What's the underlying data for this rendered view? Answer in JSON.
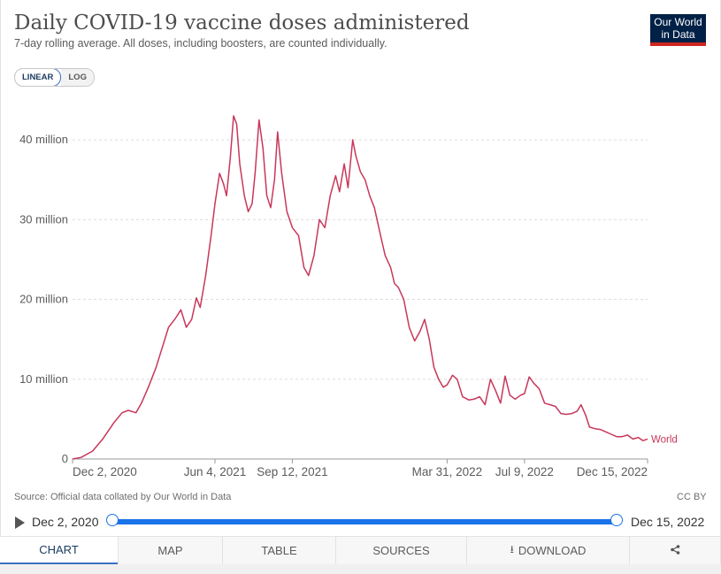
{
  "header": {
    "title": "Daily COVID-19 vaccine doses administered",
    "subtitle": "7-day rolling average. All doses, including boosters, are counted individually.",
    "logo_line1": "Our World",
    "logo_line2": "in Data"
  },
  "scale_toggle": {
    "linear": "LINEAR",
    "log": "LOG",
    "selected": "LINEAR"
  },
  "chart_data": {
    "type": "line",
    "title": "Daily COVID-19 vaccine doses administered",
    "subtitle": "7-day rolling average. All doses, including boosters, are counted individually.",
    "x_ticks": [
      "Dec 2, 2020",
      "Jun 4, 2021",
      "Sep 12, 2021",
      "Mar 31, 2022",
      "Jul 9, 2022",
      "Dec 15, 2022"
    ],
    "x_range": [
      "2020-12-02",
      "2022-12-15"
    ],
    "y_ticks": [
      "0",
      "10 million",
      "20 million",
      "30 million",
      "40 million"
    ],
    "y_tick_values": [
      0,
      10000000,
      20000000,
      30000000,
      40000000
    ],
    "ylim": [
      0,
      45000000
    ],
    "grid": true,
    "series": [
      {
        "name": "World",
        "color": "#c8375a",
        "points": [
          [
            "2020-12-02",
            0
          ],
          [
            "2020-12-13",
            200000
          ],
          [
            "2020-12-28",
            1000000
          ],
          [
            "2021-01-10",
            2500000
          ],
          [
            "2021-01-24",
            4500000
          ],
          [
            "2021-02-04",
            5800000
          ],
          [
            "2021-02-12",
            6100000
          ],
          [
            "2021-02-22",
            5800000
          ],
          [
            "2021-03-01",
            7000000
          ],
          [
            "2021-03-10",
            9000000
          ],
          [
            "2021-03-20",
            11500000
          ],
          [
            "2021-03-28",
            14000000
          ],
          [
            "2021-04-05",
            16500000
          ],
          [
            "2021-04-13",
            17500000
          ],
          [
            "2021-04-21",
            18700000
          ],
          [
            "2021-04-28",
            16500000
          ],
          [
            "2021-05-05",
            17500000
          ],
          [
            "2021-05-11",
            20200000
          ],
          [
            "2021-05-16",
            19000000
          ],
          [
            "2021-05-23",
            23000000
          ],
          [
            "2021-05-30",
            28000000
          ],
          [
            "2021-06-04",
            32000000
          ],
          [
            "2021-06-10",
            35800000
          ],
          [
            "2021-06-15",
            34500000
          ],
          [
            "2021-06-19",
            33000000
          ],
          [
            "2021-06-24",
            38000000
          ],
          [
            "2021-06-28",
            43000000
          ],
          [
            "2021-07-02",
            42000000
          ],
          [
            "2021-07-06",
            37000000
          ],
          [
            "2021-07-12",
            33000000
          ],
          [
            "2021-07-17",
            31000000
          ],
          [
            "2021-07-22",
            32000000
          ],
          [
            "2021-07-26",
            36000000
          ],
          [
            "2021-07-31",
            42500000
          ],
          [
            "2021-08-05",
            39000000
          ],
          [
            "2021-08-10",
            33000000
          ],
          [
            "2021-08-15",
            31500000
          ],
          [
            "2021-08-20",
            35000000
          ],
          [
            "2021-08-24",
            41000000
          ],
          [
            "2021-08-29",
            36000000
          ],
          [
            "2021-09-05",
            31000000
          ],
          [
            "2021-09-12",
            29000000
          ],
          [
            "2021-09-20",
            28000000
          ],
          [
            "2021-09-27",
            24000000
          ],
          [
            "2021-10-03",
            23000000
          ],
          [
            "2021-10-10",
            25500000
          ],
          [
            "2021-10-17",
            30000000
          ],
          [
            "2021-10-24",
            29000000
          ],
          [
            "2021-10-31",
            33000000
          ],
          [
            "2021-11-07",
            35500000
          ],
          [
            "2021-11-12",
            33500000
          ],
          [
            "2021-11-18",
            37000000
          ],
          [
            "2021-11-23",
            34000000
          ],
          [
            "2021-11-29",
            40000000
          ],
          [
            "2021-12-03",
            38000000
          ],
          [
            "2021-12-09",
            36000000
          ],
          [
            "2021-12-15",
            35000000
          ],
          [
            "2021-12-21",
            33000000
          ],
          [
            "2021-12-27",
            31500000
          ],
          [
            "2022-01-04",
            28000000
          ],
          [
            "2022-01-10",
            25500000
          ],
          [
            "2022-01-17",
            24000000
          ],
          [
            "2022-01-22",
            22000000
          ],
          [
            "2022-01-27",
            21500000
          ],
          [
            "2022-02-03",
            20000000
          ],
          [
            "2022-02-10",
            16500000
          ],
          [
            "2022-02-17",
            14800000
          ],
          [
            "2022-02-24",
            16000000
          ],
          [
            "2022-03-02",
            17500000
          ],
          [
            "2022-03-08",
            15000000
          ],
          [
            "2022-03-14",
            11500000
          ],
          [
            "2022-03-20",
            10000000
          ],
          [
            "2022-03-26",
            9000000
          ],
          [
            "2022-03-31",
            9300000
          ],
          [
            "2022-04-07",
            10500000
          ],
          [
            "2022-04-13",
            10000000
          ],
          [
            "2022-04-20",
            7800000
          ],
          [
            "2022-04-28",
            7400000
          ],
          [
            "2022-05-05",
            7500000
          ],
          [
            "2022-05-12",
            7800000
          ],
          [
            "2022-05-19",
            6800000
          ],
          [
            "2022-05-26",
            10000000
          ],
          [
            "2022-06-02",
            8500000
          ],
          [
            "2022-06-08",
            7000000
          ],
          [
            "2022-06-14",
            10400000
          ],
          [
            "2022-06-20",
            8000000
          ],
          [
            "2022-06-27",
            7500000
          ],
          [
            "2022-07-04",
            8000000
          ],
          [
            "2022-07-09",
            8200000
          ],
          [
            "2022-07-15",
            10300000
          ],
          [
            "2022-07-21",
            9500000
          ],
          [
            "2022-07-28",
            8800000
          ],
          [
            "2022-08-04",
            7000000
          ],
          [
            "2022-08-11",
            6800000
          ],
          [
            "2022-08-18",
            6600000
          ],
          [
            "2022-08-25",
            5700000
          ],
          [
            "2022-09-01",
            5600000
          ],
          [
            "2022-09-08",
            5700000
          ],
          [
            "2022-09-15",
            6000000
          ],
          [
            "2022-09-20",
            6800000
          ],
          [
            "2022-09-26",
            5500000
          ],
          [
            "2022-10-01",
            4000000
          ],
          [
            "2022-10-08",
            3800000
          ],
          [
            "2022-10-15",
            3700000
          ],
          [
            "2022-10-22",
            3400000
          ],
          [
            "2022-10-29",
            3100000
          ],
          [
            "2022-11-05",
            2800000
          ],
          [
            "2022-11-12",
            2800000
          ],
          [
            "2022-11-19",
            3000000
          ],
          [
            "2022-11-26",
            2500000
          ],
          [
            "2022-12-03",
            2700000
          ],
          [
            "2022-12-09",
            2300000
          ],
          [
            "2022-12-15",
            2500000
          ]
        ]
      }
    ]
  },
  "footer": {
    "source": "Source: Official data collated by Our World in Data",
    "license": "CC BY"
  },
  "timeline": {
    "start": "Dec 2, 2020",
    "end": "Dec 15, 2022"
  },
  "tabs": {
    "chart": "CHART",
    "map": "MAP",
    "table": "TABLE",
    "sources": "SOURCES",
    "download": "DOWNLOAD"
  },
  "icons": {
    "play": "play-icon",
    "download": "download-icon",
    "share": "share-icon"
  }
}
